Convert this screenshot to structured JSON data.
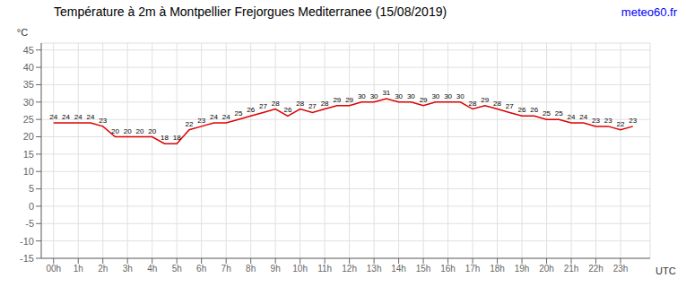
{
  "chart_data": {
    "type": "line",
    "title": "Température à 2m à Montpellier Frejorgues Mediterranee (15/08/2019)",
    "xlabel": "UTC",
    "ylabel": "°C",
    "annotations": [
      {
        "text": "meteo60.fr",
        "color": "#0000ff"
      }
    ],
    "x": [
      0,
      0.5,
      1,
      1.5,
      2,
      2.5,
      3,
      3.5,
      4,
      4.5,
      5,
      5.5,
      6,
      6.5,
      7,
      7.5,
      8,
      8.5,
      9,
      9.5,
      10,
      10.5,
      11,
      11.5,
      12,
      12.5,
      13,
      13.5,
      14,
      14.5,
      15,
      15.5,
      16,
      16.5,
      17,
      17.5,
      18,
      18.5,
      19,
      19.5,
      20,
      20.5,
      21,
      21.5,
      22,
      22.5,
      23,
      23.5
    ],
    "values": [
      24,
      24,
      24,
      24,
      23,
      20,
      20,
      20,
      20,
      18,
      18,
      22,
      23,
      24,
      24,
      25,
      26,
      27,
      28,
      26,
      28,
      27,
      28,
      29,
      29,
      30,
      30,
      31,
      30,
      30,
      29,
      30,
      30,
      30,
      28,
      29,
      28,
      27,
      26,
      26,
      25,
      25,
      24,
      24,
      23,
      23,
      22,
      23
    ],
    "color": "#dd0000",
    "xlim": [
      -0.5,
      24.2
    ],
    "xticks": [
      {
        "value": 0,
        "label": "00h"
      },
      {
        "value": 1,
        "label": "1h"
      },
      {
        "value": 2,
        "label": "2h"
      },
      {
        "value": 3,
        "label": "3h"
      },
      {
        "value": 4,
        "label": "4h"
      },
      {
        "value": 5,
        "label": "5h"
      },
      {
        "value": 6,
        "label": "6h"
      },
      {
        "value": 7,
        "label": "7h"
      },
      {
        "value": 8,
        "label": "8h"
      },
      {
        "value": 9,
        "label": "9h"
      },
      {
        "value": 10,
        "label": "10h"
      },
      {
        "value": 11,
        "label": "11h"
      },
      {
        "value": 12,
        "label": "12h"
      },
      {
        "value": 13,
        "label": "13h"
      },
      {
        "value": 14,
        "label": "14h"
      },
      {
        "value": 15,
        "label": "15h"
      },
      {
        "value": 16,
        "label": "16h"
      },
      {
        "value": 17,
        "label": "17h"
      },
      {
        "value": 18,
        "label": "18h"
      },
      {
        "value": 19,
        "label": "19h"
      },
      {
        "value": 20,
        "label": "20h"
      },
      {
        "value": 21,
        "label": "21h"
      },
      {
        "value": 22,
        "label": "22h"
      },
      {
        "value": 23,
        "label": "23h"
      }
    ],
    "ylim": [
      -15,
      47
    ],
    "yticks": [
      -15,
      -10,
      -5,
      0,
      5,
      10,
      15,
      20,
      25,
      30,
      35,
      40,
      45
    ],
    "grid": true,
    "data_labels": true
  }
}
